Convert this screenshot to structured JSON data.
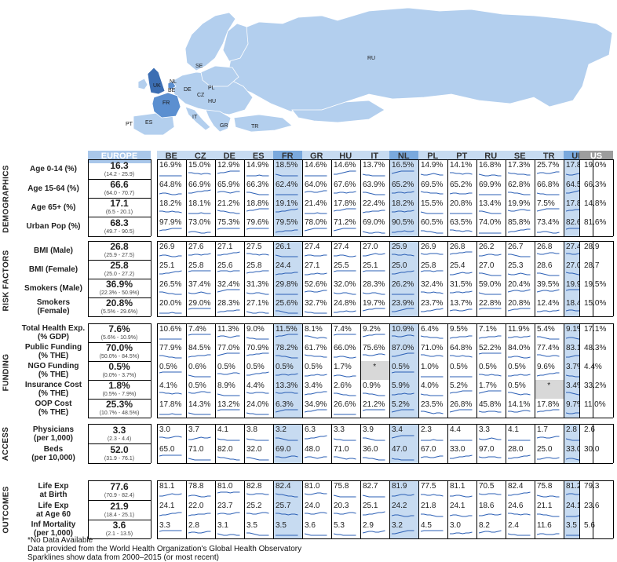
{
  "map_labels": [
    "RU",
    "SE",
    "NL",
    "PL",
    "UK",
    "BE",
    "DE",
    "CZ",
    "HU",
    "FR",
    "IT",
    "GR",
    "TR",
    "PT",
    "ES"
  ],
  "headers": {
    "europe": "EUROPE",
    "us": "US",
    "countries": [
      "BE",
      "CZ",
      "DE",
      "ES",
      "FR",
      "GR",
      "HU",
      "IT",
      "NL",
      "PL",
      "PT",
      "RU",
      "SE",
      "TR",
      "UK"
    ]
  },
  "highlight_countries": [
    "FR",
    "NL",
    "UK"
  ],
  "colors": {
    "map_land": "#b3cfee",
    "map_highlight": "#5b8fd0",
    "map_highlight_dark": "#3c6eb3",
    "highlight_column": "#c7dbf1",
    "header_dark": "#7aa9dd",
    "us_header": "#9d9d9d",
    "no_data": "#d8d8d8",
    "sparkline": "#2b5fb5"
  },
  "sections": [
    {
      "name": "DEMOGRAPHICS",
      "rows": [
        {
          "label": [
            "Age 0-14 (%)"
          ],
          "europe": "16.3",
          "range": "(14.2 - 25.9)",
          "values": [
            "16.9%",
            "15.0%",
            "12.9%",
            "14.9%",
            "18.5%",
            "14.6%",
            "14.6%",
            "13.7%",
            "16.5%",
            "14.9%",
            "14.1%",
            "16.8%",
            "17.3%",
            "25.7%",
            "17.8%"
          ],
          "us": "19.0%"
        },
        {
          "label": [
            "Age 15-64 (%)"
          ],
          "europe": "66.6",
          "range": "(64.0 - 70.7)",
          "values": [
            "64.8%",
            "66.9%",
            "65.9%",
            "66.3%",
            "62.4%",
            "64.0%",
            "67.6%",
            "63.9%",
            "65.2%",
            "69.5%",
            "65.2%",
            "69.9%",
            "62.8%",
            "66.8%",
            "64.5%"
          ],
          "us": "66.3%"
        },
        {
          "label": [
            "Age 65+ (%)"
          ],
          "europe": "17.1",
          "range": "(6.5 - 20.1)",
          "values": [
            "18.2%",
            "18.1%",
            "21.2%",
            "18.8%",
            "19.1%",
            "21.4%",
            "17.8%",
            "22.4%",
            "18.2%",
            "15.5%",
            "20.8%",
            "13.4%",
            "19.9%",
            "7.5%",
            "17.8%"
          ],
          "us": "14.8%"
        },
        {
          "label": [
            "Urban Pop (%)"
          ],
          "europe": "68.3",
          "range": "(49.7 - 90.5)",
          "values": [
            "97.9%",
            "73.0%",
            "75.3%",
            "79.6%",
            "79.5%",
            "78.0%",
            "71.2%",
            "69.0%",
            "90.5%",
            "60.5%",
            "63.5%",
            "74.0%",
            "85.8%",
            "73.4%",
            "82.6%"
          ],
          "us": "81.6%"
        }
      ]
    },
    {
      "name": "RISK FACTORS",
      "rows": [
        {
          "label": [
            "BMI (Male)"
          ],
          "europe": "26.8",
          "range": "(25.9 - 27.5)",
          "values": [
            "26.9",
            "27.6",
            "27.1",
            "27.5",
            "26.1",
            "27.4",
            "27.4",
            "27.0",
            "25.9",
            "26.9",
            "26.8",
            "26.2",
            "26.7",
            "26.8",
            "27.4"
          ],
          "us": "28.9"
        },
        {
          "label": [
            "BMI (Female)"
          ],
          "europe": "25.8",
          "range": "(25.0 - 27.2)",
          "values": [
            "25.1",
            "25.8",
            "25.6",
            "25.8",
            "24.4",
            "27.1",
            "25.5",
            "25.1",
            "25.0",
            "25.8",
            "25.4",
            "27.0",
            "25.3",
            "28.6",
            "27.0"
          ],
          "us": "28.7"
        },
        {
          "label": [
            "Smokers (Male)"
          ],
          "europe": "36.9%",
          "range": "(22.3% - 50.9%)",
          "values": [
            "26.5%",
            "37.4%",
            "32.4%",
            "31.3%",
            "29.8%",
            "52.6%",
            "32.0%",
            "28.3%",
            "26.2%",
            "32.4%",
            "31.5%",
            "59.0%",
            "20.4%",
            "39.5%",
            "19.9%"
          ],
          "us": "19.5%"
        },
        {
          "label": [
            "Smokers (Female)"
          ],
          "europe": "20.8%",
          "range": "(5.5% - 29.6%)",
          "values": [
            "20.0%",
            "29.0%",
            "28.3%",
            "27.1%",
            "25.6%",
            "32.7%",
            "24.8%",
            "19.7%",
            "23.9%",
            "23.7%",
            "13.7%",
            "22.8%",
            "20.8%",
            "12.4%",
            "18.4%"
          ],
          "us": "15.0%"
        }
      ]
    },
    {
      "name": "FUNDING",
      "rows": [
        {
          "label": [
            "Total Health Exp.",
            "(% GDP)"
          ],
          "europe": "7.6%",
          "range": "(5.6% - 10.9%)",
          "values": [
            "10.6%",
            "7.4%",
            "11.3%",
            "9.0%",
            "11.5%",
            "8.1%",
            "7.4%",
            "9.2%",
            "10.9%",
            "6.4%",
            "9.5%",
            "7.1%",
            "11.9%",
            "5.4%",
            "9.1%"
          ],
          "us": "17.1%"
        },
        {
          "label": [
            "Public Funding",
            "(% THE)"
          ],
          "europe": "70.0%",
          "range": "(50.0% - 84.5%)",
          "values": [
            "77.9%",
            "84.5%",
            "77.0%",
            "70.9%",
            "78.2%",
            "61.7%",
            "66.0%",
            "75.6%",
            "87.0%",
            "71.0%",
            "64.8%",
            "52.2%",
            "84.0%",
            "77.4%",
            "83.1%"
          ],
          "us": "48.3%"
        },
        {
          "label": [
            "NGO Funding",
            "(% THE)"
          ],
          "europe": "0.5%",
          "range": "(0.0% - 3.7%)",
          "values": [
            "0.5%",
            "0.6%",
            "0.5%",
            "0.5%",
            "0.5%",
            "0.5%",
            "1.7%",
            "*",
            "0.5%",
            "1.0%",
            "0.5%",
            "0.5%",
            "0.5%",
            "9.6%",
            "3.7%"
          ],
          "us": "4.4%"
        },
        {
          "label": [
            "Insurance Cost",
            "(% THE)"
          ],
          "europe": "1.8%",
          "range": "(0.5% - 7.9%)",
          "values": [
            "4.1%",
            "0.5%",
            "8.9%",
            "4.4%",
            "13.3%",
            "3.4%",
            "2.6%",
            "0.9%",
            "5.9%",
            "4.0%",
            "5.2%",
            "1.7%",
            "0.5%",
            "*",
            "3.4%"
          ],
          "us": "33.2%"
        },
        {
          "label": [
            "OOP Cost",
            "(% THE)"
          ],
          "europe": "25.3%",
          "range": "(10.7% - 48.5%)",
          "values": [
            "17.8%",
            "14.3%",
            "13.2%",
            "24.0%",
            "6.3%",
            "34.9%",
            "26.6%",
            "21.2%",
            "5.2%",
            "23.5%",
            "26.8%",
            "45.8%",
            "14.1%",
            "17.8%",
            "9.7%"
          ],
          "us": "11.0%"
        }
      ]
    },
    {
      "name": "ACCESS",
      "rows": [
        {
          "label": [
            "Physicians",
            "(per 1,000)"
          ],
          "europe": "3.3",
          "range": "(2.3 - 4.4)",
          "values": [
            "3.0",
            "3.7",
            "4.1",
            "3.8",
            "3.2",
            "6.3",
            "3.3",
            "3.9",
            "3.4",
            "2.3",
            "4.4",
            "3.3",
            "4.1",
            "1.7",
            "2.8"
          ],
          "us": "2.6"
        },
        {
          "label": [
            "Beds",
            "(per 10,000)"
          ],
          "europe": "52.0",
          "range": "(31.9 - 76.1)",
          "values": [
            "65.0",
            "71.0",
            "82.0",
            "32.0",
            "69.0",
            "48.0",
            "71.0",
            "36.0",
            "47.0",
            "67.0",
            "33.0",
            "97.0",
            "28.0",
            "25.0",
            "33.0"
          ],
          "us": "30.0"
        }
      ]
    },
    {
      "name": "OUTCOMES",
      "rows": [
        {
          "label": [
            "Life Exp",
            "at Birth"
          ],
          "europe": "77.6",
          "range": "(70.9 - 82.4)",
          "values": [
            "81.1",
            "78.8",
            "81.0",
            "82.8",
            "82.4",
            "81.0",
            "75.8",
            "82.7",
            "81.9",
            "77.5",
            "81.1",
            "70.5",
            "82.4",
            "75.8",
            "81.2"
          ],
          "us": "79.3"
        },
        {
          "label": [
            "Life Exp",
            "at Age 60"
          ],
          "europe": "21.9",
          "range": "(18.4 - 25.1)",
          "values": [
            "24.1",
            "22.0",
            "23.7",
            "25.2",
            "25.7",
            "24.0",
            "20.3",
            "25.1",
            "24.2",
            "21.8",
            "24.1",
            "18.6",
            "24.6",
            "21.1",
            "24.1"
          ],
          "us": "23.6"
        },
        {
          "label": [
            "Inf Mortality",
            "(per 1,000)"
          ],
          "europe": "3.6",
          "range": "(2.1 - 13.5)",
          "values": [
            "3.3",
            "2.8",
            "3.1",
            "3.5",
            "3.5",
            "3.6",
            "5.3",
            "2.9",
            "3.2",
            "4.5",
            "3.0",
            "8.2",
            "2.4",
            "11.6",
            "3.5"
          ],
          "us": "5.6"
        }
      ]
    }
  ],
  "notes": [
    "*No Data Available",
    "Data provided from the World Health Organization's Global Health Observatory",
    "Sparklines show data from 2000–2015 (or most recent)"
  ]
}
